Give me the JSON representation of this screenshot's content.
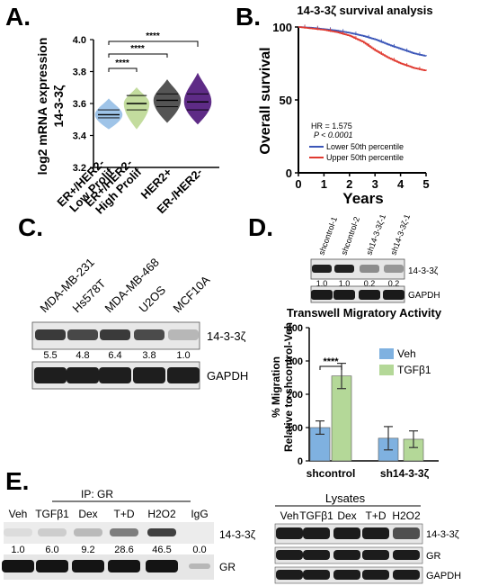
{
  "panels": {
    "a": "A.",
    "b": "B.",
    "c": "C.",
    "d": "D.",
    "e": "E."
  },
  "colors": {
    "lowProlif": "#9fc4e8",
    "highProlif": "#c3dc9e",
    "her2": "#555555",
    "triple": "#5e2b86",
    "lower": "#3b56b8",
    "upper": "#e03a30",
    "veh": "#7fb1e0",
    "tgf": "#b4d898"
  },
  "panel_a_text": {
    "ylabel_line1": "log2 mRNA expression",
    "ylabel_line2": "14-3-3ζ",
    "stars": [
      "****",
      "****",
      "****"
    ]
  },
  "panel_b_text": {
    "hr": "HR = 1.575",
    "p": "P < 0.0001"
  },
  "panel_c": {
    "cells": [
      "MDA-MB-231",
      "Hs578T",
      "MDA-MB-468",
      "U2OS",
      "MCF10A"
    ],
    "quant": [
      "5.5",
      "4.8",
      "6.4",
      "3.8",
      "1.0"
    ],
    "bands": [
      "14-3-3ζ",
      "GAPDH"
    ]
  },
  "panel_d_blot": {
    "lanes": [
      "shcontrol-1",
      "shcontrol-2",
      "sh14-3-3ζ-1",
      "sh14-3-3ζ-1"
    ],
    "quant": [
      "1.0",
      "1.0",
      "0.2",
      "0.2"
    ],
    "bands": [
      "14-3-3ζ",
      "GAPDH"
    ]
  },
  "panel_e_ip": {
    "header": "IP: GR",
    "lanes": [
      "Veh",
      "TGFβ1",
      "Dex",
      "T+D",
      "H2O2",
      "IgG"
    ],
    "quant": [
      "1.0",
      "6.0",
      "9.2",
      "28.6",
      "46.5",
      "0.0"
    ],
    "bands": [
      "14-3-3ζ",
      "GR"
    ]
  },
  "panel_e_lys": {
    "header": "Lysates",
    "lanes": [
      "Veh",
      "TGFβ1",
      "Dex",
      "T+D",
      "H2O2"
    ],
    "bands": [
      "14-3-3ζ",
      "GR",
      "GAPDH"
    ]
  },
  "chart_data": [
    {
      "type": "violin",
      "categories": [
        "ER+/HER2- Low Prolif",
        "ER+/HER2- High Prolif",
        "HER2+",
        "ER-/HER2-"
      ],
      "medians": [
        3.53,
        3.6,
        3.62,
        3.61
      ],
      "quartiles": [
        [
          3.51,
          3.56
        ],
        [
          3.56,
          3.65
        ],
        [
          3.58,
          3.66
        ],
        [
          3.56,
          3.66
        ]
      ],
      "ranges": [
        [
          3.44,
          3.63
        ],
        [
          3.44,
          3.7
        ],
        [
          3.48,
          3.75
        ],
        [
          3.47,
          3.79
        ]
      ],
      "ylabel": "log2 mRNA expression 14-3-3ζ",
      "ylim": [
        3.2,
        4.0
      ],
      "yticks": [
        "3.2",
        "3.4",
        "3.6",
        "3.8",
        "4.0"
      ]
    },
    {
      "type": "line",
      "title": "14-3-3ζ survival analysis",
      "xlabel": "Years",
      "ylabel": "Overall survival",
      "xlim": [
        0,
        5
      ],
      "ylim": [
        0,
        100
      ],
      "xticks": [
        "0",
        "1",
        "2",
        "3",
        "4",
        "5"
      ],
      "yticks": [
        "0",
        "50",
        "100"
      ],
      "series": [
        {
          "name": "Lower 50th percentile",
          "x": [
            0,
            0.5,
            1,
            1.5,
            2,
            2.5,
            3,
            3.5,
            4,
            4.5,
            5
          ],
          "y": [
            100,
            99.5,
            98.5,
            97.5,
            96,
            94,
            91.5,
            88,
            85,
            82,
            80
          ]
        },
        {
          "name": "Upper 50th percentile",
          "x": [
            0,
            0.5,
            1,
            1.5,
            2,
            2.5,
            3,
            3.5,
            4,
            4.5,
            5
          ],
          "y": [
            100,
            99,
            98,
            96.5,
            94,
            90,
            84,
            79,
            75,
            72,
            70
          ]
        }
      ]
    },
    {
      "type": "bar",
      "title": "Transwell Migratory Activity",
      "categories": [
        "shcontrol",
        "sh14-3-3ζ"
      ],
      "ylabel": "% Migration Relative to shcontrol-Veh",
      "ylim": [
        0,
        400
      ],
      "yticks": [
        "0",
        "100",
        "200",
        "300",
        "400"
      ],
      "significance": "****",
      "series": [
        {
          "name": "Veh",
          "values": [
            100,
            68
          ],
          "errors": [
            20,
            35
          ]
        },
        {
          "name": "TGFβ1",
          "values": [
            255,
            65
          ],
          "errors": [
            38,
            25
          ]
        }
      ]
    }
  ]
}
